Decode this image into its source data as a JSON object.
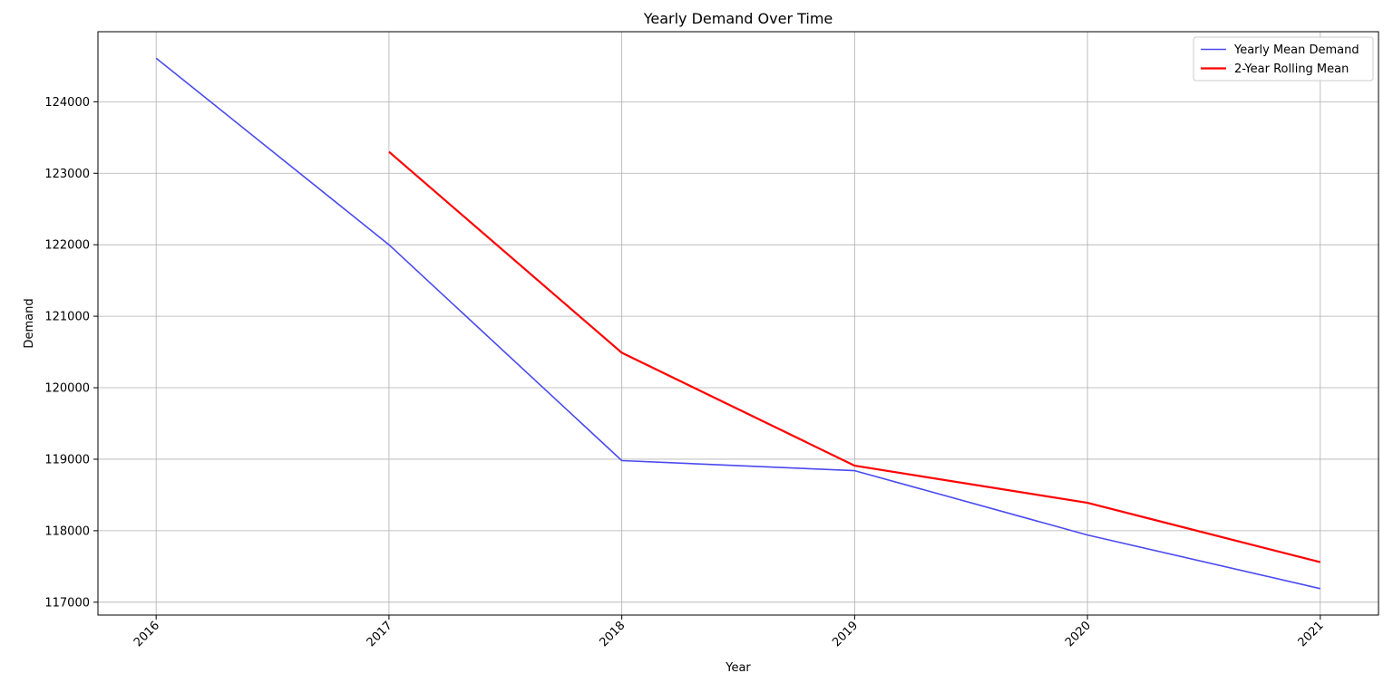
{
  "chart_data": {
    "type": "line",
    "title": "Yearly Demand Over Time",
    "xlabel": "Year",
    "ylabel": "Demand",
    "x": [
      2016,
      2017,
      2018,
      2019,
      2020,
      2021
    ],
    "x_tick_labels": [
      "2016",
      "2017",
      "2018",
      "2019",
      "2020",
      "2021"
    ],
    "y_ticks": [
      117000,
      118000,
      119000,
      120000,
      121000,
      122000,
      123000,
      124000
    ],
    "y_tick_labels": [
      "117000",
      "118000",
      "119000",
      "120000",
      "121000",
      "122000",
      "123000",
      "124000"
    ],
    "xlim": [
      2015.75,
      2021.25
    ],
    "ylim": [
      116820,
      124980
    ],
    "grid": true,
    "legend_position": "top-right",
    "series": [
      {
        "name": "Yearly Mean Demand",
        "color": "#4a4af0",
        "values": [
          124610,
          122000,
          118980,
          118840,
          117940,
          117190
        ]
      },
      {
        "name": "2-Year Rolling Mean",
        "color": "#ff0000",
        "values": [
          null,
          123300,
          120490,
          118910,
          118390,
          117560
        ]
      }
    ]
  }
}
